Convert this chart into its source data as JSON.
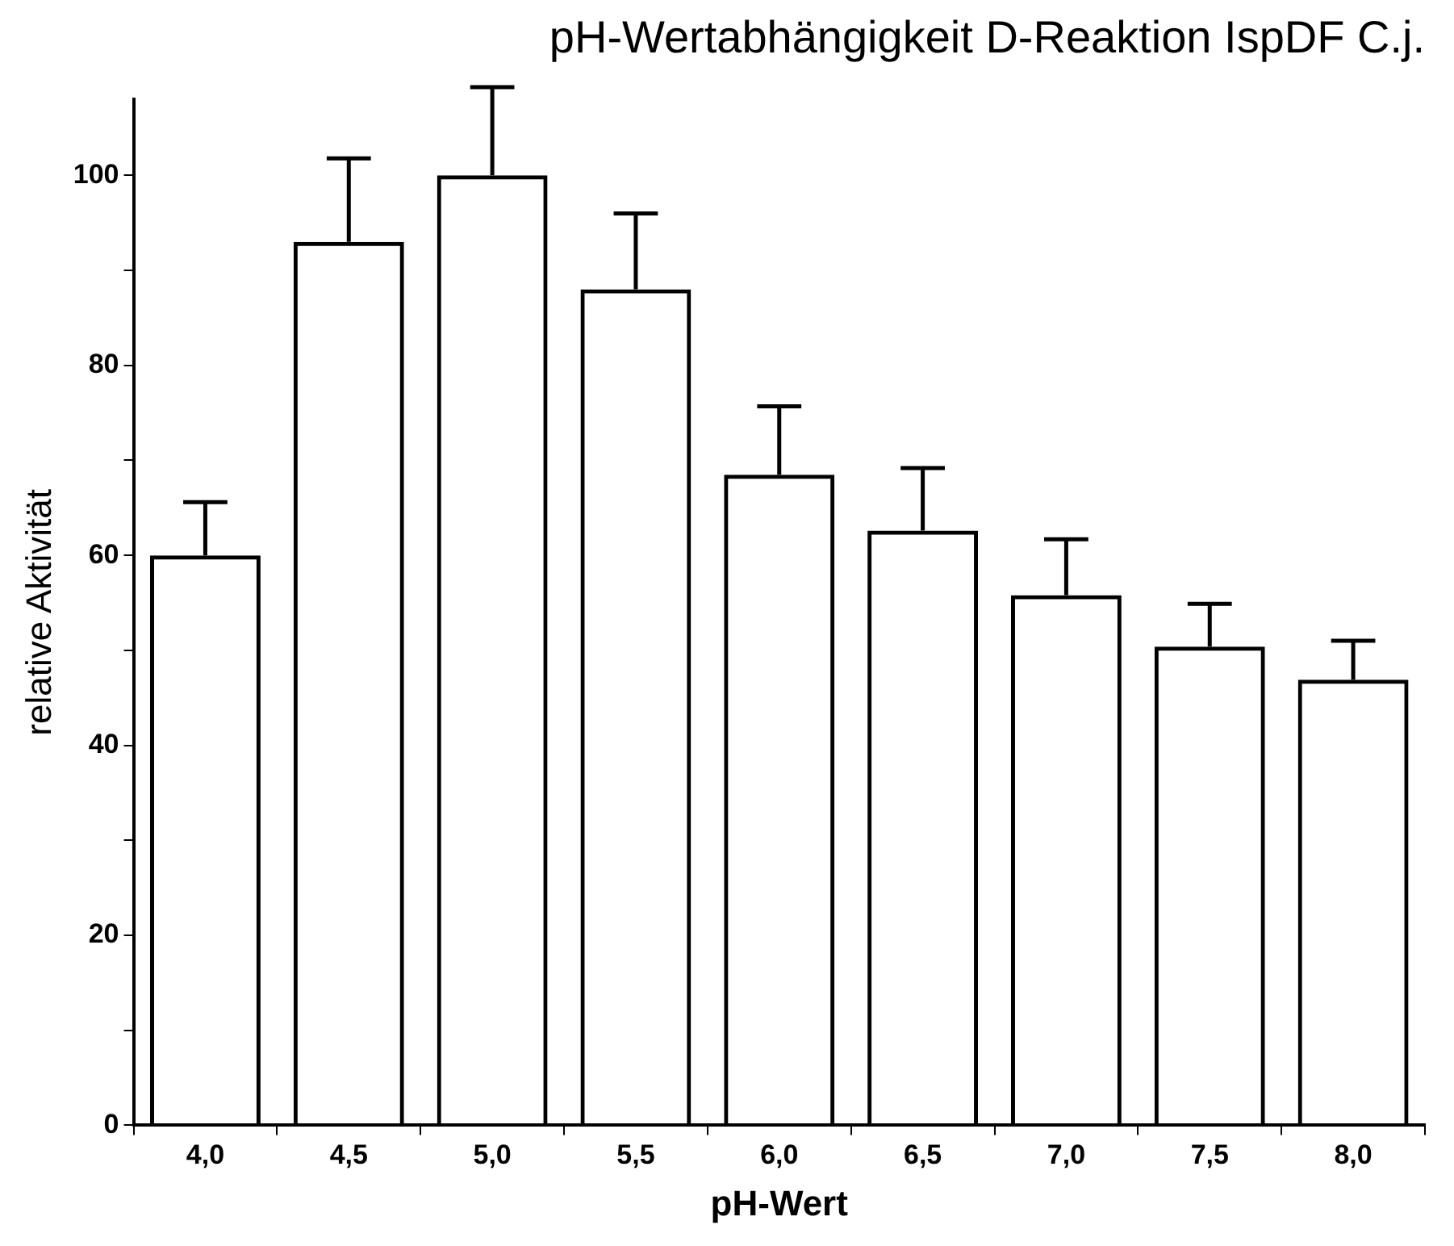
{
  "chart_data": {
    "type": "bar",
    "title": "pH-Wertabhängigkeit D-Reaktion IspDF C.j.",
    "xlabel": "pH-Wert",
    "ylabel": "relative Aktivität",
    "categories": [
      "4,0",
      "4,5",
      "5,0",
      "5,5",
      "6,0",
      "6,5",
      "7,0",
      "7,5",
      "8,0"
    ],
    "values": [
      60,
      93,
      100,
      88,
      68.5,
      62.6,
      55.8,
      50.4,
      46.9
    ],
    "errors": [
      [
        60,
        65.6
      ],
      [
        93,
        101.8
      ],
      [
        100,
        109.3
      ],
      [
        88,
        96
      ],
      [
        68.5,
        75.7
      ],
      [
        62.6,
        69.2
      ],
      [
        55.8,
        61.7
      ],
      [
        50.4,
        54.9
      ],
      [
        46.9,
        51
      ]
    ],
    "color": "#000000",
    "ylim": [
      0,
      108
    ],
    "yticks": [
      0,
      {
        "value": 10,
        "label": null
      },
      20,
      {
        "value": 30,
        "label": null
      },
      40,
      {
        "value": 50,
        "label": null
      },
      60,
      {
        "value": 70,
        "label": null
      },
      80,
      {
        "value": 90,
        "label": null
      },
      100
    ]
  }
}
